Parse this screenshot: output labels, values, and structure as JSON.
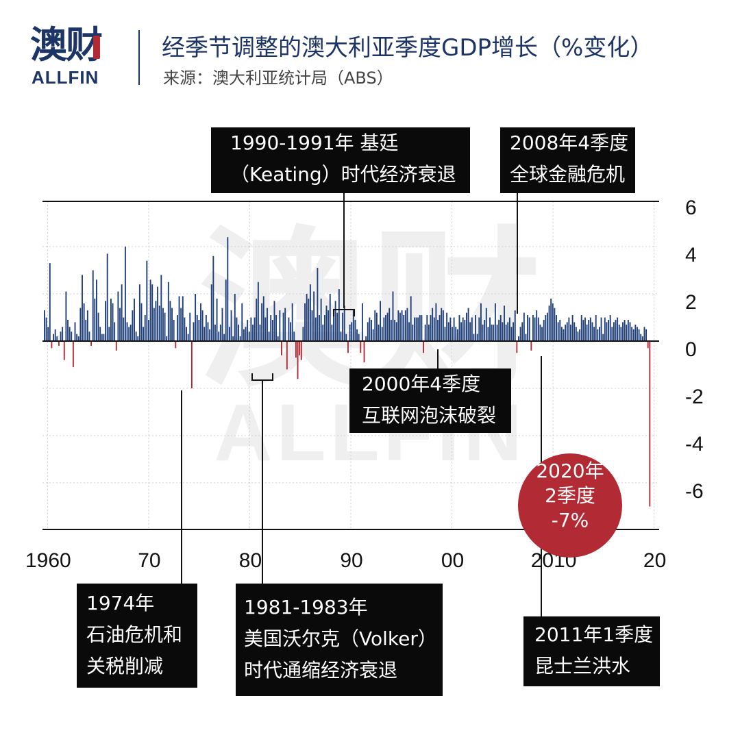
{
  "header": {
    "logo_cn": "澳财",
    "logo_en": "ALLFIN",
    "title": "经季节调整的澳大利亚季度GDP增长（%变化）",
    "source": "来源：澳大利亚统计局（ABS）"
  },
  "colors": {
    "positive": "#1f3f7a",
    "negative": "#b22a33",
    "brand": "#1d3566",
    "callout_bg": "#0a0a0a",
    "watermark": "#efefef"
  },
  "watermark": {
    "cn": "澳财",
    "en": "ALLFIN"
  },
  "callouts": {
    "keating": [
      "1990-1991年 基廷",
      "（Keating）时代经济衰退"
    ],
    "gfc": [
      "2008年4季度",
      "全球金融危机"
    ],
    "dotcom": [
      "2000年4季度",
      "互联网泡沫破裂"
    ],
    "oil": [
      "1974年",
      "石油危机和",
      "关税削减"
    ],
    "volker": [
      "1981-1983年",
      "美国沃尔克（Volker）",
      "时代通缩经济衰退"
    ],
    "flood": [
      "2011年1季度",
      "昆士兰洪水"
    ],
    "covid": [
      "2020年",
      "2季度",
      "-7%"
    ]
  },
  "chart_data": {
    "type": "bar",
    "title": "经季节调整的澳大利亚季度GDP增长（%变化）",
    "xlabel": "",
    "ylabel": "",
    "ylim": [
      -8,
      6
    ],
    "yticks": [
      6,
      4,
      2,
      0,
      -2,
      -4,
      -6
    ],
    "ytick_labels": [
      "6",
      "4",
      "2",
      "0",
      "-2",
      "-4",
      "-6"
    ],
    "xticks": [
      1960,
      1970,
      1980,
      1990,
      2000,
      2010,
      2020
    ],
    "xtick_labels": [
      "1960",
      "70",
      "80",
      "90",
      "00",
      "2010",
      "20"
    ],
    "x_start": 1959.5,
    "x_end": 2020.5,
    "grid": true,
    "series": [
      {
        "values": [
          1.3,
          1.0,
          0.6,
          3.3,
          -0.3,
          0.3,
          0.5,
          0.2,
          -0.2,
          0.4,
          0.6,
          -0.8,
          2.1,
          0.9,
          0.6,
          0.4,
          -1.1,
          0.8,
          0.3,
          0.2,
          1.4,
          2.8,
          1.6,
          0.9,
          1.3,
          0.4,
          -0.2,
          3.0,
          1.8,
          2.6,
          1.2,
          0.6,
          0.3,
          0.3,
          1.7,
          3.7,
          0.6,
          1.8,
          1.6,
          0.8,
          -0.4,
          2.1,
          1.4,
          2.4,
          1.0,
          4.0,
          0.8,
          0.6,
          0.7,
          1.3,
          1.8,
          0.4,
          0.2,
          2.4,
          1.6,
          0.6,
          1.1,
          3.4,
          0.9,
          2.6,
          2.4,
          1.4,
          1.7,
          2.3,
          1.5,
          2.8,
          1.4,
          1.2,
          0.2,
          2.5,
          1.7,
          1.4,
          0.9,
          -0.3,
          1.1,
          1.9,
          1.4,
          1.9,
          1.0,
          0.6,
          0.3,
          1.2,
          -2.0,
          0.8,
          2.0,
          1.1,
          0.9,
          1.6,
          1.3,
          0.6,
          1.1,
          0.8,
          0.5,
          2.4,
          3.6,
          0.7,
          1.8,
          0.4,
          0.7,
          1.4,
          0.3,
          2.6,
          4.4,
          0.6,
          1.3,
          0.2,
          2.0,
          1.0,
          0.7,
          0.2,
          1.6,
          0.5,
          0.6,
          0.9,
          0.4,
          1.0,
          0.7,
          1.0,
          1.8,
          2.5,
          0.7,
          1.6,
          1.9,
          1.0,
          1.4,
          0.4,
          1.1,
          0.9,
          1.7,
          1.1,
          0.2,
          1.3,
          -0.6,
          1.2,
          1.4,
          -1.2,
          1.0,
          0.8,
          1.6,
          0.4,
          -0.7,
          -1.6,
          -0.6,
          -0.8,
          0.6,
          1.6,
          2.0,
          1.8,
          2.4,
          1.3,
          2.1,
          1.0,
          3.1,
          1.1,
          1.8,
          0.7,
          1.1,
          1.5,
          1.3,
          2.0,
          0.7,
          1.1,
          1.7,
          1.2,
          2.2,
          0.4,
          1.2,
          1.5,
          0.3,
          -0.5,
          0.7,
          0.8,
          1.3,
          0.9,
          0.5,
          0.3,
          -0.5,
          1.6,
          -0.9,
          0.2,
          0.8,
          1.0,
          0.9,
          0.5,
          1.3,
          1.2,
          0.7,
          1.7,
          0.6,
          1.0,
          1.1,
          1.2,
          1.4,
          0.9,
          2.1,
          0.9,
          0.8,
          1.3,
          1.2,
          1.3,
          1.1,
          1.3,
          1.4,
          0.8,
          1.9,
          0.7,
          1.0,
          1.0,
          1.0,
          1.1,
          1.1,
          -0.5,
          0.7,
          1.1,
          0.7,
          1.1,
          1.4,
          1.0,
          1.6,
          0.9,
          1.1,
          1.4,
          1.3,
          0.6,
          1.2,
          0.8,
          1.0,
          0.6,
          1.0,
          0.6,
          0.5,
          1.1,
          0.8,
          1.0,
          0.9,
          1.2,
          1.4,
          0.8,
          1.0,
          0.3,
          1.1,
          0.3,
          1.0,
          1.6,
          0.7,
          0.9,
          1.4,
          0.6,
          1.0,
          0.7,
          0.7,
          1.6,
          0.7,
          0.9,
          1.1,
          0.8,
          1.5,
          0.7,
          0.8,
          1.0,
          0.6,
          0.8,
          1.3,
          -0.5,
          0.2,
          0.6,
          0.8,
          1.2,
          0.3,
          1.1,
          1.0,
          -0.4,
          1.1,
          1.0,
          1.3,
          1.0,
          0.7,
          0.6,
          0.9,
          1.1,
          1.2,
          1.5,
          1.8,
          1.6,
          1.4,
          1.1,
          0.8,
          0.9,
          0.6,
          0.5,
          0.7,
          0.8,
          1.0,
          0.7,
          1.1,
          0.8,
          0.6,
          0.4,
          0.5,
          1.1,
          0.9,
          1.0,
          0.7,
          0.9,
          1.0,
          0.8,
          0.6,
          1.1,
          0.5,
          0.6,
          1.0,
          0.3,
          1.0,
          0.8,
          0.9,
          1.1,
          0.6,
          0.8,
          0.9,
          1.0,
          0.7,
          0.6,
          0.8,
          0.9,
          0.7,
          0.9,
          0.8,
          0.6,
          0.5,
          0.7,
          0.6,
          0.5,
          0.3,
          0.2,
          0.6,
          0.5,
          -0.3,
          -7.0
        ]
      }
    ]
  }
}
